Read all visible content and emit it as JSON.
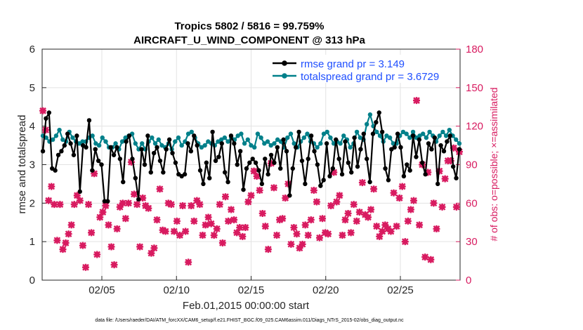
{
  "chart_data": {
    "type": "line",
    "title_line1": "Tropics 5802 / 5816 = 99.759%",
    "title_line2": "AIRCRAFT_U_WIND_COMPONENT @ 313 hPa",
    "xlabel": "Feb.01,2015 00:00:00 start",
    "ylabel_left": "rmse and totalspread",
    "ylabel_right": "# of obs: o=possible; ×=assimilated",
    "footnote": "data file: /Users/raeder/DAI/ATM_forcXX/CAM6_setup/f.e21.FHIST_BGC.f09_025.CAM6assim.011/Diags_NTrS_2015-02/obs_diag_output.nc",
    "x_ticks": [
      5,
      10,
      15,
      20,
      25
    ],
    "x_tick_labels": [
      "02/05",
      "02/10",
      "02/15",
      "02/20",
      "02/25"
    ],
    "xlim": [
      1,
      29
    ],
    "ylim_left": [
      0,
      6
    ],
    "yticks_left": [
      "0",
      "1",
      "2",
      "3",
      "4",
      "5",
      "6"
    ],
    "ylim_right": [
      0,
      180
    ],
    "yticks_right": [
      "0",
      "30",
      "60",
      "90",
      "120",
      "150",
      "180"
    ],
    "legend": [
      "rmse grand pr = 3.149",
      "totalspread grand pr = 3.6729"
    ],
    "colors": {
      "rmse": "#000000",
      "spread": "#00808a",
      "obs": "#d81b60",
      "legend_text": "#1f4fff"
    },
    "series": [
      {
        "name": "rmse grand pr = 3.149",
        "values": [
          3.35,
          4.2,
          4.35,
          2.9,
          2.85,
          3.25,
          3.35,
          3.5,
          3.8,
          3.55,
          3.25,
          3.75,
          2.3,
          3.5,
          3.45,
          4.15,
          2.85,
          3.4,
          3.1,
          3.0,
          2.05,
          2.05,
          3.45,
          3.25,
          3.45,
          3.15,
          2.55,
          3.6,
          3.75,
          3.15,
          2.65,
          2.1,
          3.4,
          3.0,
          3.75,
          2.8,
          3.3,
          3.45,
          3.1,
          2.8,
          3.4,
          3.65,
          3.3,
          3.05,
          2.75,
          2.7,
          2.75,
          3.55,
          3.35,
          3.75,
          3.5,
          2.85,
          2.5,
          3.05,
          2.65,
          3.85,
          3.1,
          3.2,
          3.55,
          2.8,
          2.55,
          3.75,
          3.55,
          3.0,
          3.35,
          2.35,
          2.9,
          3.05,
          3.15,
          3.05,
          2.85,
          2.5,
          3.15,
          2.75,
          3.25,
          3.05,
          3.45,
          2.9,
          3.65,
          3.35,
          2.2,
          2.9,
          3.45,
          3.85,
          3.1,
          2.5,
          3.15,
          3.75,
          3.35,
          3.0,
          2.45,
          2.6,
          3.55,
          2.7,
          2.9,
          3.65,
          3.15,
          2.75,
          3.6,
          3.05,
          2.8,
          3.7,
          2.95,
          3.4,
          3.8,
          3.15,
          2.55,
          3.8,
          4.1,
          4.35,
          3.85,
          2.9,
          2.6,
          3.4,
          3.45,
          3.8,
          3.45,
          2.7,
          3.0,
          2.85,
          3.75,
          3.2,
          3.65,
          3.05,
          2.75,
          3.55,
          3.4,
          3.7,
          2.5,
          3.5,
          3.35,
          3.6,
          3.75,
          2.95,
          2.65,
          3.4
        ]
      },
      {
        "name": "totalspread grand pr = 3.6729",
        "values": [
          3.75,
          3.7,
          3.6,
          3.65,
          3.75,
          3.9,
          3.65,
          3.6,
          3.85,
          3.7,
          3.6,
          3.55,
          3.6,
          3.6,
          3.7,
          3.75,
          3.55,
          3.5,
          3.7,
          3.6,
          3.45,
          3.45,
          3.55,
          3.4,
          3.6,
          3.7,
          3.75,
          3.8,
          3.55,
          3.4,
          3.55,
          3.4,
          3.6,
          3.7,
          3.55,
          3.65,
          3.5,
          3.45,
          3.55,
          3.4,
          3.6,
          3.7,
          3.5,
          3.6,
          3.8,
          3.85,
          3.7,
          3.55,
          3.45,
          3.5,
          3.6,
          3.55,
          3.5,
          3.6,
          3.65,
          3.7,
          3.6,
          3.7,
          3.65,
          3.75,
          3.8,
          3.55,
          3.65,
          3.5,
          3.45,
          3.8,
          3.7,
          3.55,
          3.6,
          3.5,
          3.55,
          3.65,
          3.6,
          3.45,
          3.7,
          3.8,
          3.55,
          3.45,
          3.6,
          3.7,
          3.8,
          3.6,
          3.55,
          3.45,
          3.55,
          3.8,
          3.85,
          3.7,
          3.55,
          3.6,
          3.55,
          3.75,
          3.65,
          3.45,
          3.55,
          3.85,
          3.7,
          3.65,
          4.05,
          4.3,
          4.0,
          3.85,
          3.75,
          3.6,
          3.75,
          3.7,
          3.55,
          3.55,
          3.75,
          3.85,
          3.8,
          3.7,
          3.85,
          3.7,
          3.75,
          3.8,
          3.7,
          3.85,
          3.75,
          3.6,
          3.75,
          3.85,
          3.75,
          3.9,
          3.75,
          3.65,
          3.55
        ]
      },
      {
        "name": "assimilated obs count",
        "values": [
          132,
          117,
          62,
          73,
          59,
          31,
          59,
          24,
          29,
          36,
          43,
          59,
          66,
          62,
          27,
          10,
          59,
          37,
          83,
          20,
          49,
          53,
          58,
          43,
          26,
          12,
          40,
          57,
          60,
          48,
          60,
          92,
          67,
          59,
          26,
          64,
          58,
          56,
          21,
          25,
          47,
          71,
          39,
          38,
          60,
          59,
          38,
          46,
          35,
          58,
          38,
          14,
          58,
          46,
          62,
          59,
          35,
          43,
          49,
          44,
          35,
          40,
          59,
          29,
          65,
          46,
          55,
          47,
          37,
          41,
          34,
          41,
          61,
          66,
          85,
          81,
          70,
          52,
          42,
          24,
          91,
          72,
          35,
          47,
          48,
          64,
          75,
          28,
          41,
          36,
          25,
          28,
          43,
          35,
          47,
          70,
          61,
          33,
          48,
          37,
          36,
          58,
          84,
          61,
          66,
          35,
          47,
          52,
          37,
          59,
          46,
          53,
          76,
          51,
          49,
          55,
          71,
          42,
          34,
          38,
          43,
          40,
          38,
          68,
          42,
          64,
          73,
          30,
          46,
          55,
          62,
          140,
          43,
          90,
          18,
          84,
          16,
          60,
          40,
          85,
          57,
          79,
          93,
          93,
          103,
          57,
          100
        ]
      },
      {
        "name": "possible obs count",
        "values": [
          132,
          117,
          62,
          73,
          59,
          31,
          59,
          24,
          29,
          36,
          43,
          59,
          66,
          62,
          27,
          10,
          59,
          37,
          83,
          20,
          49,
          53,
          58,
          43,
          26,
          12,
          40,
          57,
          60,
          48,
          60,
          92,
          67,
          59,
          26,
          64,
          58,
          56,
          21,
          25,
          47,
          71,
          39,
          38,
          60,
          59,
          38,
          46,
          35,
          58,
          38,
          14,
          58,
          46,
          62,
          59,
          35,
          43,
          49,
          44,
          35,
          40,
          59,
          29,
          65,
          46,
          55,
          47,
          37,
          41,
          34,
          41,
          61,
          66,
          85,
          81,
          70,
          52,
          42,
          24,
          91,
          72,
          35,
          47,
          48,
          64,
          75,
          28,
          41,
          36,
          25,
          28,
          43,
          35,
          47,
          70,
          61,
          33,
          48,
          37,
          36,
          58,
          84,
          61,
          66,
          35,
          47,
          52,
          37,
          59,
          46,
          53,
          76,
          51,
          49,
          55,
          71,
          42,
          34,
          38,
          43,
          40,
          38,
          68,
          42,
          64,
          73,
          30,
          46,
          55,
          62,
          140,
          43,
          90,
          18,
          84,
          16,
          60,
          40,
          85,
          57,
          79,
          93,
          93,
          103,
          57,
          100
        ]
      }
    ]
  }
}
